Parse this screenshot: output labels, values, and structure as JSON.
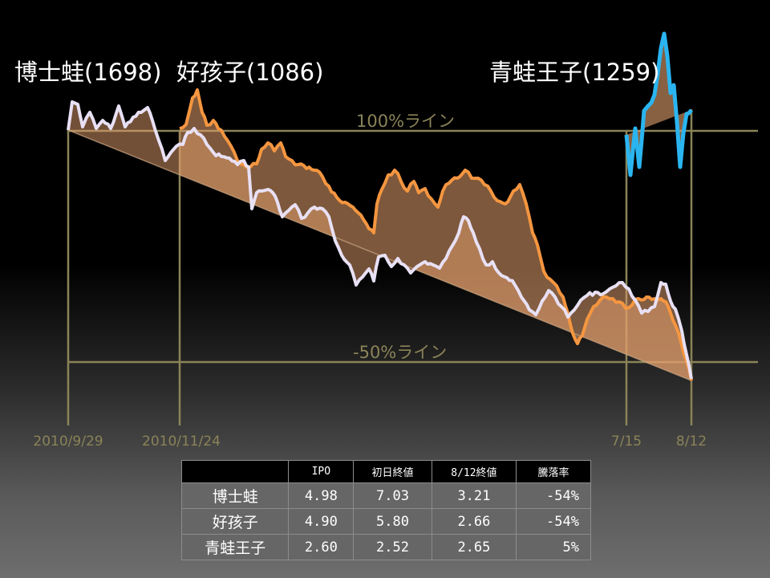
{
  "chart_data": {
    "type": "line",
    "series": [
      {
        "name": "博士蛙(1698)",
        "color": "#e8e0f4",
        "start": "2010/9/29",
        "end": "8/12",
        "start_pct": 0,
        "end_pct": -54
      },
      {
        "name": "好孩子(1086)",
        "color": "#f59640",
        "start": "2010/11/24",
        "end": "8/12",
        "start_pct": 0,
        "end_pct": -54
      },
      {
        "name": "青蛙王子(1259)",
        "color": "#2ab5f0",
        "start": "7/15",
        "end": "8/12",
        "start_pct": 0,
        "end_pct": 5
      }
    ],
    "reference_lines": [
      {
        "label": "100%ライン",
        "value": 0
      },
      {
        "label": "-50%ライン",
        "value": -50
      }
    ],
    "x_ticks": [
      "2010/9/29",
      "2010/11/24",
      "7/15",
      "8/12"
    ],
    "colors": {
      "guide": "#8a8358",
      "fill": "#e3a06e"
    }
  },
  "table": {
    "headers": [
      "",
      "IPO",
      "初日終値",
      "8/12終値",
      "騰落率"
    ],
    "rows": [
      [
        "博士蛙",
        "4.98",
        "7.03",
        "3.21",
        "-54%"
      ],
      [
        "好孩子",
        "4.90",
        "5.80",
        "2.66",
        "-54%"
      ],
      [
        "青蛙王子",
        "2.60",
        "2.52",
        "2.65",
        "5%"
      ]
    ]
  }
}
